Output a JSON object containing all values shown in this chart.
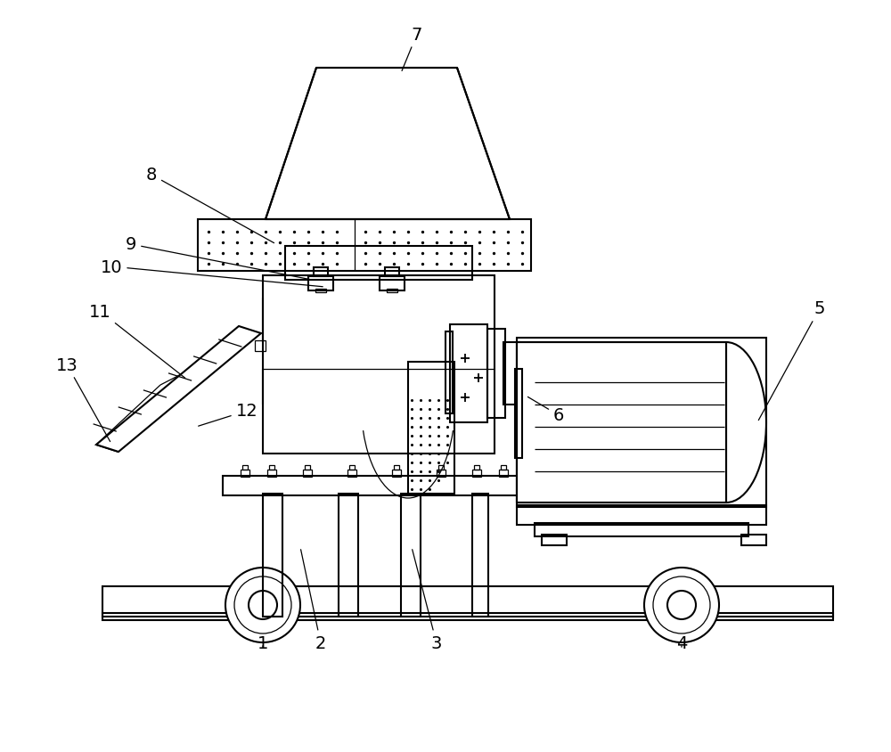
{
  "bg": "#ffffff",
  "lc": "#000000",
  "lw": 1.5,
  "lwt": 0.9,
  "fs": 14,
  "fig_w": 10.0,
  "fig_h": 8.45
}
